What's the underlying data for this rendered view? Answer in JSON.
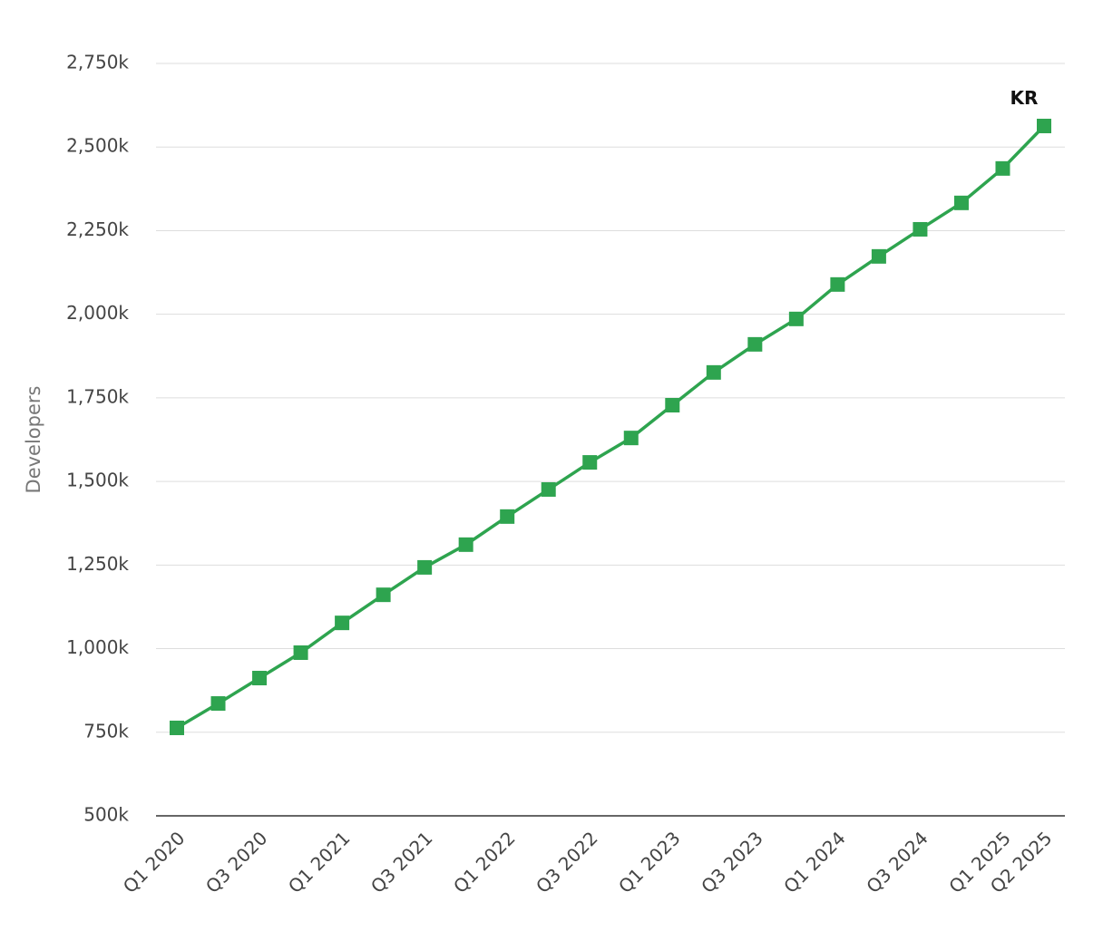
{
  "chart_data": {
    "type": "line",
    "y_label": "Developers",
    "categories": [
      "Q1 2020",
      null,
      "Q3 2020",
      null,
      "Q1 2021",
      null,
      "Q3 2021",
      null,
      "Q1 2022",
      null,
      "Q3 2022",
      null,
      "Q1 2023",
      null,
      "Q3 2023",
      null,
      "Q1 2024",
      null,
      "Q3 2024",
      null,
      "Q1 2025",
      "Q2 2025"
    ],
    "series": [
      {
        "name": "KR",
        "color": "#2ea44f",
        "values": [
          763,
          836,
          912,
          988,
          1077,
          1161,
          1243,
          1311,
          1395,
          1476,
          1557,
          1630,
          1728,
          1826,
          1910,
          1986,
          2089,
          2173,
          2254,
          2333,
          2436,
          2563
        ]
      }
    ],
    "ylim": [
      500,
      2750
    ],
    "yticks": [
      {
        "value": 500,
        "label": "500k"
      },
      {
        "value": 750,
        "label": "750k"
      },
      {
        "value": 1000,
        "label": "1,000k"
      },
      {
        "value": 1250,
        "label": "1,250k"
      },
      {
        "value": 1500,
        "label": "1,500k"
      },
      {
        "value": 1750,
        "label": "1,750k"
      },
      {
        "value": 2000,
        "label": "2,000k"
      },
      {
        "value": 2250,
        "label": "2,250k"
      },
      {
        "value": 2500,
        "label": "2,500k"
      },
      {
        "value": 2750,
        "label": "2,750k"
      }
    ],
    "grid": true
  }
}
